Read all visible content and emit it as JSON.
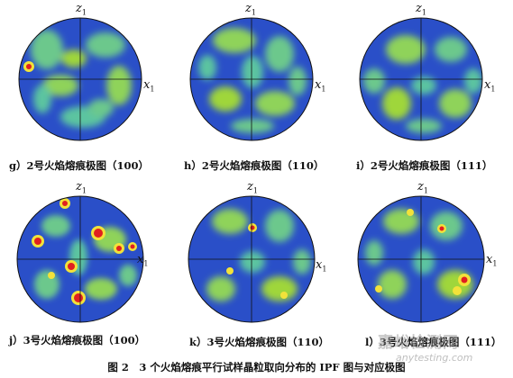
{
  "axis_labels": {
    "z": "z",
    "z_sub": "1",
    "x": "x",
    "x_sub": "1"
  },
  "panels": [
    {
      "caption": "g）2号火焰熔痕极图（100）",
      "sample": "2号",
      "plane": "100"
    },
    {
      "caption": "h）2号火焰熔痕极图（110）",
      "sample": "2号",
      "plane": "110"
    },
    {
      "caption": "i）2号火焰熔痕极图（111）",
      "sample": "2号",
      "plane": "111"
    },
    {
      "caption": "j）3号火焰熔痕极图（100）",
      "sample": "3号",
      "plane": "100"
    },
    {
      "caption": "k）3号火焰熔痕极图（110）",
      "sample": "3号",
      "plane": "110"
    },
    {
      "caption": "l）3号火焰熔痕极图（111）",
      "sample": "3号",
      "plane": "111"
    }
  ],
  "figure_caption": "图 2　3 个火焰熔痕平行试样晶粒取向分布的 IPF 图与对应极图",
  "watermark": {
    "cn": "嘉峪检测网",
    "en": "anytesting.com"
  },
  "colors": {
    "background": "#1e3aa8",
    "low": "#2a4fc8",
    "mid": "#5cc4a0",
    "high": "#9fd63a",
    "peak": "#f2e23a",
    "max": "#e02020"
  }
}
